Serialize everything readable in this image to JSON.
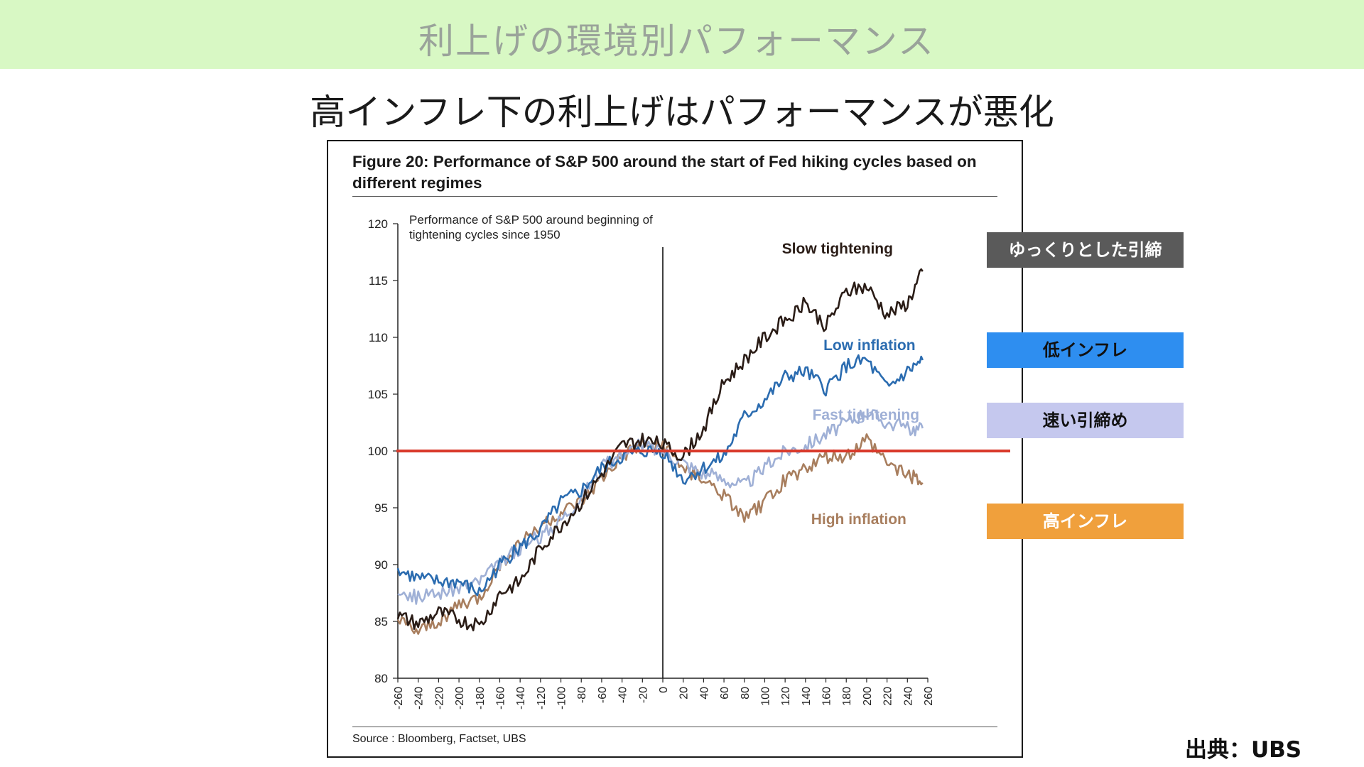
{
  "banner": {
    "title": "利上げの環境別パフォーマンス"
  },
  "subtitle": "高インフレ下の利上げはパフォーマンスが悪化",
  "figure": {
    "title": "Figure 20: Performance of S&P 500 around the start of Fed hiking cycles based on different regimes",
    "source": "Source : Bloomberg, Factset, UBS"
  },
  "legend": {
    "slow": "ゆっくりとした引締",
    "low": "低インフレ",
    "fast": "速い引締め",
    "high": "高インフレ"
  },
  "credit": "出典：UBS",
  "colors": {
    "banner_bg": "#d8f8c4",
    "slow": "#2a1c16",
    "low": "#2b6cb0",
    "fast": "#9fb0d6",
    "high": "#a87e5e",
    "reference_line": "#d93a2b"
  },
  "chart_data": {
    "type": "line",
    "title": "Performance of S&P 500 around beginning of tightening cycles since 1950",
    "xlabel": "",
    "ylabel": "",
    "xlim": [
      -260,
      260
    ],
    "ylim": [
      80,
      120
    ],
    "x_ticks": [
      -260,
      -240,
      -220,
      -200,
      -180,
      -160,
      -140,
      -120,
      -100,
      -80,
      -60,
      -40,
      -20,
      0,
      20,
      40,
      60,
      80,
      100,
      120,
      140,
      160,
      180,
      200,
      220,
      240,
      260
    ],
    "y_ticks": [
      80,
      85,
      90,
      95,
      100,
      105,
      110,
      115,
      120
    ],
    "vertical_line_x": 0,
    "reference_line_y": 100,
    "grid": false,
    "series": [
      {
        "name": "Slow tightening",
        "color": "#2a1c16",
        "x": [
          -260,
          -240,
          -220,
          -200,
          -180,
          -160,
          -140,
          -120,
          -100,
          -80,
          -60,
          -40,
          -20,
          0,
          20,
          40,
          60,
          80,
          100,
          120,
          140,
          160,
          180,
          200,
          220,
          240,
          255
        ],
        "y": [
          85.5,
          84.8,
          85.8,
          85.2,
          84.5,
          87.5,
          88.5,
          91.5,
          93.5,
          95.5,
          98,
          100.5,
          101,
          100.5,
          99.5,
          102,
          106,
          108,
          110,
          111.5,
          113,
          111,
          114,
          114.5,
          112,
          113,
          115.8
        ]
      },
      {
        "name": "Low inflation",
        "color": "#2b6cb0",
        "x": [
          -260,
          -240,
          -220,
          -200,
          -180,
          -160,
          -140,
          -120,
          -100,
          -80,
          -60,
          -40,
          -20,
          0,
          20,
          40,
          60,
          80,
          100,
          120,
          140,
          160,
          180,
          200,
          220,
          240,
          255
        ],
        "y": [
          89.5,
          88.8,
          88.5,
          88.5,
          87.5,
          90,
          91.5,
          93,
          95.5,
          96.5,
          98.5,
          99.5,
          100,
          100,
          97.5,
          98.5,
          99.5,
          103,
          104.5,
          106.5,
          107,
          105.5,
          107.5,
          108,
          105.5,
          107,
          108
        ]
      },
      {
        "name": "Fast tightening",
        "color": "#9fb0d6",
        "x": [
          -260,
          -240,
          -220,
          -200,
          -180,
          -160,
          -140,
          -120,
          -100,
          -80,
          -60,
          -40,
          -20,
          0,
          20,
          40,
          60,
          80,
          100,
          120,
          140,
          160,
          180,
          200,
          220,
          240,
          255
        ],
        "y": [
          88,
          87,
          87.5,
          88,
          88.5,
          90,
          91.5,
          92.5,
          94,
          96,
          98.5,
          99.8,
          100.5,
          100,
          99,
          98,
          97.5,
          97,
          98.5,
          100,
          100.5,
          101.5,
          102.5,
          103.5,
          102.5,
          102,
          102
        ]
      },
      {
        "name": "High inflation",
        "color": "#a87e5e",
        "x": [
          -260,
          -240,
          -220,
          -200,
          -180,
          -160,
          -140,
          -120,
          -100,
          -80,
          -60,
          -40,
          -20,
          0,
          20,
          40,
          60,
          80,
          100,
          120,
          140,
          160,
          180,
          200,
          220,
          240,
          255
        ],
        "y": [
          85,
          84,
          85,
          86.5,
          87,
          90,
          92,
          93.5,
          94.5,
          95.5,
          97.5,
          99.5,
          100.5,
          100.5,
          98.5,
          97.5,
          96,
          94,
          95.5,
          97.5,
          98.5,
          99.5,
          99.5,
          101,
          99,
          98,
          97.2
        ]
      }
    ]
  }
}
